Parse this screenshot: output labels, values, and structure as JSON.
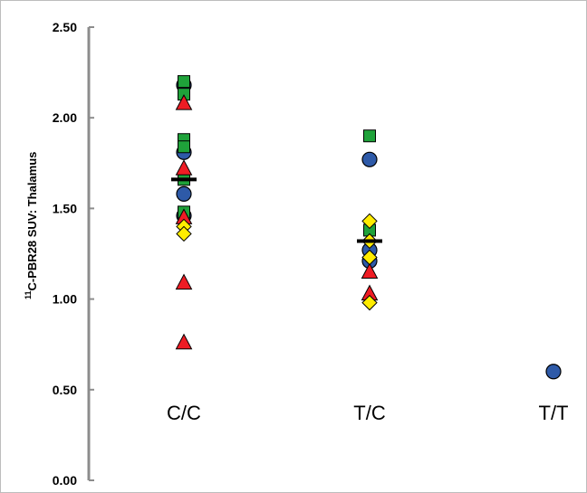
{
  "chart_data": {
    "type": "scatter",
    "title": "",
    "xlabel": "",
    "ylabel_prefix": "11",
    "ylabel": "C-PBR28 SUV: Thalamus",
    "categories": [
      "C/C",
      "T/C",
      "T/T"
    ],
    "ylim": [
      0,
      2.5
    ],
    "yticks": [
      "0.00",
      "0.50",
      "1.00",
      "1.50",
      "2.00",
      "2.50"
    ],
    "grid": false,
    "legend": "none",
    "colors": {
      "circle": "#2e5aa8",
      "square": "#1fa23a",
      "triangle": "#ee1c24",
      "diamond": "#ffec00",
      "mean": "#000000"
    },
    "series": [
      {
        "marker": "circle",
        "points": [
          {
            "category": "C/C",
            "y": 2.18
          },
          {
            "category": "C/C",
            "y": 1.81
          },
          {
            "category": "C/C",
            "y": 1.58
          },
          {
            "category": "C/C",
            "y": 1.46
          },
          {
            "category": "T/C",
            "y": 1.77
          },
          {
            "category": "T/C",
            "y": 1.27
          },
          {
            "category": "T/C",
            "y": 1.21
          },
          {
            "category": "T/T",
            "y": 0.6
          }
        ]
      },
      {
        "marker": "square",
        "points": [
          {
            "category": "C/C",
            "y": 2.2
          },
          {
            "category": "C/C",
            "y": 2.13
          },
          {
            "category": "C/C",
            "y": 1.88
          },
          {
            "category": "C/C",
            "y": 1.84
          },
          {
            "category": "C/C",
            "y": 1.66
          },
          {
            "category": "C/C",
            "y": 1.48
          },
          {
            "category": "T/C",
            "y": 1.9
          },
          {
            "category": "T/C",
            "y": 1.38
          }
        ]
      },
      {
        "marker": "triangle",
        "points": [
          {
            "category": "C/C",
            "y": 2.08
          },
          {
            "category": "C/C",
            "y": 1.72
          },
          {
            "category": "C/C",
            "y": 1.45
          },
          {
            "category": "C/C",
            "y": 1.09
          },
          {
            "category": "C/C",
            "y": 0.76
          },
          {
            "category": "T/C",
            "y": 1.15
          },
          {
            "category": "T/C",
            "y": 1.03
          }
        ]
      },
      {
        "marker": "diamond",
        "points": [
          {
            "category": "C/C",
            "y": 1.4
          },
          {
            "category": "C/C",
            "y": 1.36
          },
          {
            "category": "T/C",
            "y": 1.43
          },
          {
            "category": "T/C",
            "y": 1.32
          },
          {
            "category": "T/C",
            "y": 1.23
          },
          {
            "category": "T/C",
            "y": 0.98
          }
        ]
      }
    ],
    "means": [
      {
        "category": "C/C",
        "y": 1.66
      },
      {
        "category": "T/C",
        "y": 1.32
      }
    ]
  }
}
